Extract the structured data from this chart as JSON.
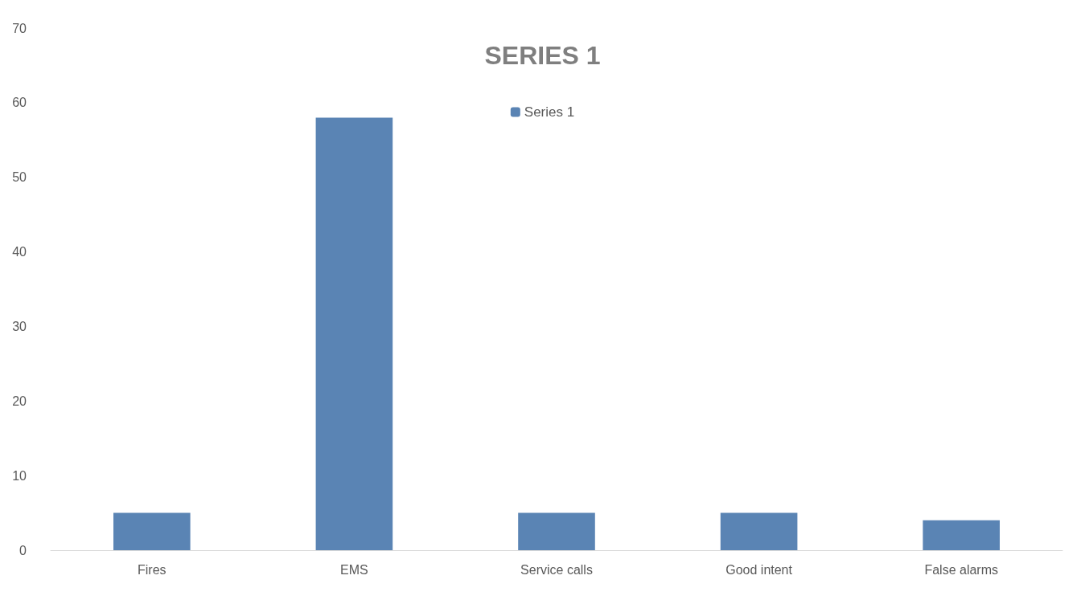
{
  "chart_data": {
    "type": "bar",
    "title": "SERIES 1",
    "categories": [
      "Fires",
      "EMS",
      "Service calls",
      "Good intent",
      "False alarms"
    ],
    "series": [
      {
        "name": "Series 1",
        "color": "#5a84b4",
        "values": [
          5,
          58,
          5,
          5,
          4
        ]
      }
    ],
    "ylim": [
      0,
      70
    ],
    "yticks": [
      0,
      10,
      20,
      30,
      40,
      50,
      60,
      70
    ],
    "grid": false,
    "legend": "top"
  }
}
